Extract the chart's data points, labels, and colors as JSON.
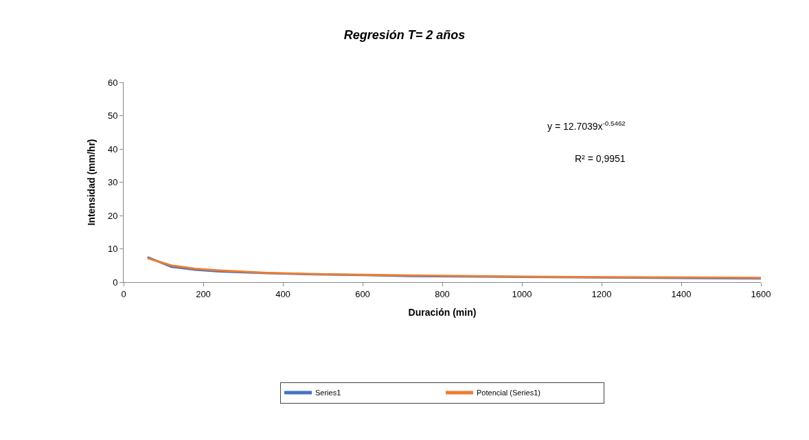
{
  "chart_data": {
    "type": "line",
    "title": "Regresión T= 2 años",
    "xlabel": "Duración (min)",
    "ylabel": "Intensidad (mm/hr)",
    "series": [
      {
        "name": "Series1",
        "color": "#4472c4",
        "x": [
          60,
          120,
          180,
          240,
          360,
          480,
          600,
          720,
          960,
          1200,
          1440,
          1600
        ],
        "values": [
          7.5,
          4.6,
          3.7,
          3.2,
          2.7,
          2.3,
          2.1,
          1.8,
          1.6,
          1.4,
          1.2,
          1.1
        ]
      },
      {
        "name": "Potencial (Series1)",
        "color": "#ed7d31",
        "x": [
          60,
          120,
          180,
          240,
          360,
          480,
          600,
          720,
          960,
          1200,
          1440,
          1600
        ],
        "values": [
          7.2,
          5.0,
          4.0,
          3.5,
          2.8,
          2.4,
          2.2,
          2.0,
          1.7,
          1.5,
          1.4,
          1.3
        ]
      }
    ],
    "xlim": [
      0,
      1600
    ],
    "xticks": [
      0,
      200,
      400,
      600,
      800,
      1000,
      1200,
      1400,
      1600
    ],
    "ylim": [
      0,
      60
    ],
    "yticks": [
      0,
      10,
      20,
      30,
      40,
      50,
      60
    ],
    "annotations": [
      "y = 12.7039x$^{-0.5462}$",
      "R² = 0,9951"
    ],
    "legend": "bottom",
    "marker": "none",
    "line_style": "solid"
  }
}
